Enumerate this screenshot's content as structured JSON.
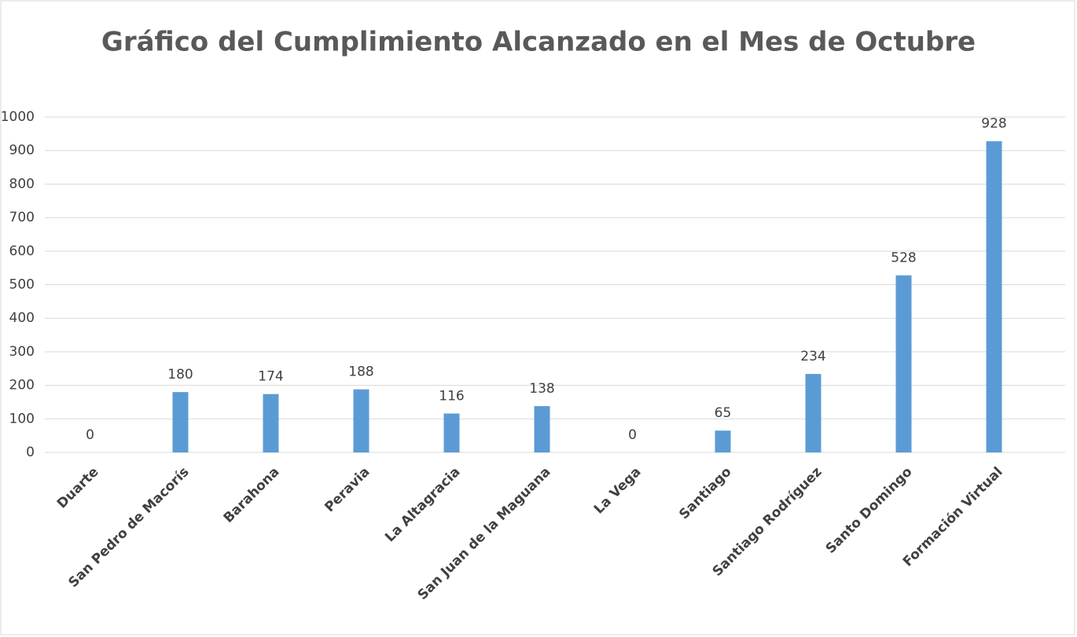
{
  "chart_data": {
    "type": "bar",
    "title": "Gráfico del Cumplimiento Alcanzado en el Mes de Octubre",
    "categories": [
      "Duarte",
      "San Pedro de Macorís",
      "Barahona",
      "Peravia",
      "La Altagracia",
      "San Juan de la Maguana",
      "La Vega",
      "Santiago",
      "Santiago Rodríguez",
      "Santo Domingo",
      "Formación Virtual"
    ],
    "values": [
      0,
      180,
      174,
      188,
      116,
      138,
      0,
      65,
      234,
      528,
      928
    ],
    "color": "#5b9bd5",
    "ylim": [
      0,
      1000
    ],
    "yticks": [
      0,
      100,
      200,
      300,
      400,
      500,
      600,
      700,
      800,
      900,
      1000
    ],
    "grid": true
  }
}
